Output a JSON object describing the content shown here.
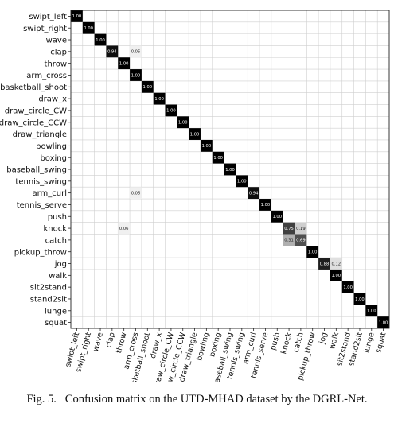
{
  "chart_data": {
    "type": "heatmap",
    "title": "",
    "xlabel": "",
    "ylabel": "",
    "row_labels": [
      "swipt_left",
      "swipt_right",
      "wave",
      "clap",
      "throw",
      "arm_cross",
      "basketball_shoot",
      "draw_x",
      "draw_circle_CW",
      "draw_circle_CCW",
      "draw_triangle",
      "bowling",
      "boxing",
      "baseball_swing",
      "tennis_swing",
      "arm_curl",
      "tennis_serve",
      "push",
      "knock",
      "catch",
      "pickup_throw",
      "jog",
      "walk",
      "sit2stand",
      "stand2sit",
      "lunge",
      "squat"
    ],
    "col_labels": [
      "swipt_left",
      "swipt_right",
      "wave",
      "clap",
      "throw",
      "arm_cross",
      "basketball_shoot",
      "draw_x",
      "draw_circle_CW",
      "draw_circle_CCW",
      "draw_triangle",
      "bowling",
      "boxing",
      "baseball_swing",
      "tennis_swing",
      "arm_curl",
      "tennis_serve",
      "push",
      "knock",
      "catch",
      "pickup_throw",
      "jog",
      "walk",
      "sit2stand",
      "stand2sit",
      "lunge",
      "squat"
    ],
    "cells": [
      {
        "row": 0,
        "col": 0,
        "value": "1.00"
      },
      {
        "row": 1,
        "col": 1,
        "value": "1.00"
      },
      {
        "row": 2,
        "col": 2,
        "value": "1.00"
      },
      {
        "row": 3,
        "col": 3,
        "value": "0.94"
      },
      {
        "row": 3,
        "col": 5,
        "value": "0.06"
      },
      {
        "row": 4,
        "col": 4,
        "value": "1.00"
      },
      {
        "row": 5,
        "col": 5,
        "value": "1.00"
      },
      {
        "row": 6,
        "col": 6,
        "value": "1.00"
      },
      {
        "row": 7,
        "col": 7,
        "value": "1.00"
      },
      {
        "row": 8,
        "col": 8,
        "value": "1.00"
      },
      {
        "row": 9,
        "col": 9,
        "value": "1.00"
      },
      {
        "row": 10,
        "col": 10,
        "value": "1.00"
      },
      {
        "row": 11,
        "col": 11,
        "value": "1.00"
      },
      {
        "row": 12,
        "col": 12,
        "value": "1.00"
      },
      {
        "row": 13,
        "col": 13,
        "value": "1.00"
      },
      {
        "row": 14,
        "col": 14,
        "value": "1.00"
      },
      {
        "row": 15,
        "col": 5,
        "value": "0.06"
      },
      {
        "row": 15,
        "col": 15,
        "value": "0.94"
      },
      {
        "row": 16,
        "col": 16,
        "value": "1.00"
      },
      {
        "row": 17,
        "col": 17,
        "value": "1.00"
      },
      {
        "row": 18,
        "col": 4,
        "value": "0.06"
      },
      {
        "row": 18,
        "col": 18,
        "value": "0.75"
      },
      {
        "row": 18,
        "col": 19,
        "value": "0.19"
      },
      {
        "row": 19,
        "col": 18,
        "value": "0.31"
      },
      {
        "row": 19,
        "col": 19,
        "value": "0.69"
      },
      {
        "row": 20,
        "col": 20,
        "value": "1.00"
      },
      {
        "row": 21,
        "col": 21,
        "value": "0.88"
      },
      {
        "row": 21,
        "col": 22,
        "value": "0.12"
      },
      {
        "row": 22,
        "col": 22,
        "value": "1.00"
      },
      {
        "row": 23,
        "col": 23,
        "value": "1.00"
      },
      {
        "row": 24,
        "col": 24,
        "value": "1.00"
      },
      {
        "row": 25,
        "col": 25,
        "value": "1.00"
      },
      {
        "row": 26,
        "col": 26,
        "value": "1.00"
      }
    ],
    "color_scale": {
      "low": "#ffffff",
      "high": "#000000"
    },
    "grid": true,
    "legend": "none"
  },
  "caption": {
    "label": "Fig. 5.",
    "text": "Confusion matrix on the UTD-MHAD dataset by the DGRL-Net."
  }
}
